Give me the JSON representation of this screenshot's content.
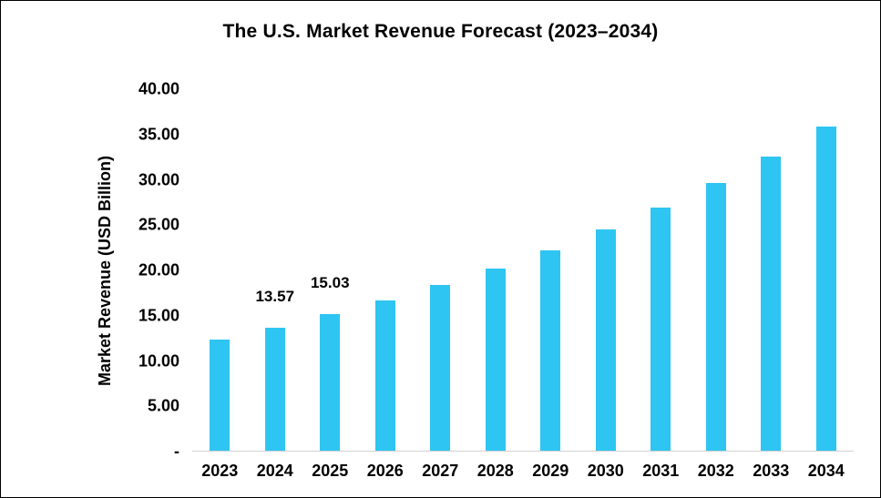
{
  "chart_data": {
    "type": "bar",
    "title": "The U.S. Market Revenue Forecast (2023–2034)",
    "xlabel": "",
    "ylabel": "Market Revenue (USD Billion)",
    "categories": [
      "2023",
      "2024",
      "2025",
      "2026",
      "2027",
      "2028",
      "2029",
      "2030",
      "2031",
      "2032",
      "2033",
      "2034"
    ],
    "values": [
      12.3,
      13.57,
      15.03,
      16.6,
      18.3,
      20.1,
      22.1,
      24.4,
      26.8,
      29.5,
      32.5,
      35.8
    ],
    "data_labels": {
      "2024": "13.57",
      "2025": "15.03"
    },
    "ylim": [
      0,
      40
    ],
    "y_ticks": [
      {
        "value": 40,
        "label": "40.00"
      },
      {
        "value": 35,
        "label": "35.00"
      },
      {
        "value": 30,
        "label": "30.00"
      },
      {
        "value": 25,
        "label": "25.00"
      },
      {
        "value": 20,
        "label": "20.00"
      },
      {
        "value": 15,
        "label": "15.00"
      },
      {
        "value": 10,
        "label": "10.00"
      },
      {
        "value": 5,
        "label": "5.00"
      },
      {
        "value": 0,
        "label": "-"
      }
    ],
    "bar_color": "#2EC5F2",
    "axis_line_color": "#d0d0d0",
    "grid": false,
    "legend_position": "none"
  }
}
